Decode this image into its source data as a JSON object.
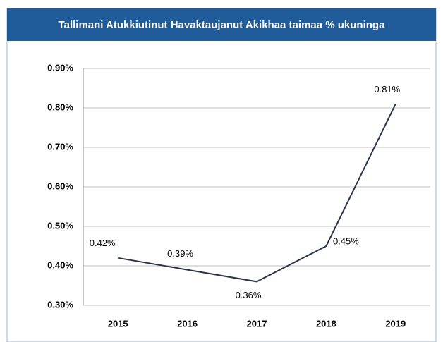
{
  "chart_data": {
    "type": "line",
    "title": "Tallimani Atukkiutinut Havaktaujanut Akikhaa taimaa % ukuninga",
    "categories": [
      "2015",
      "2016",
      "2017",
      "2018",
      "2019"
    ],
    "series": [
      {
        "name": null,
        "color": "#2b3548",
        "values": [
          0.42,
          0.39,
          0.36,
          0.45,
          0.81
        ],
        "value_labels": [
          "0.42%",
          "0.39%",
          "0.36%",
          "0.45%",
          "0.81%"
        ]
      }
    ],
    "ylim": [
      0.3,
      0.9
    ],
    "yticks": [
      {
        "value": 0.3,
        "label": "0.30%"
      },
      {
        "value": 0.4,
        "label": "0.40%"
      },
      {
        "value": 0.5,
        "label": "0.50%"
      },
      {
        "value": 0.6,
        "label": "0.60%"
      },
      {
        "value": 0.7,
        "label": "0.70%"
      },
      {
        "value": 0.8,
        "label": "0.80%"
      },
      {
        "value": 0.9,
        "label": "0.90%"
      }
    ],
    "grid": true
  }
}
